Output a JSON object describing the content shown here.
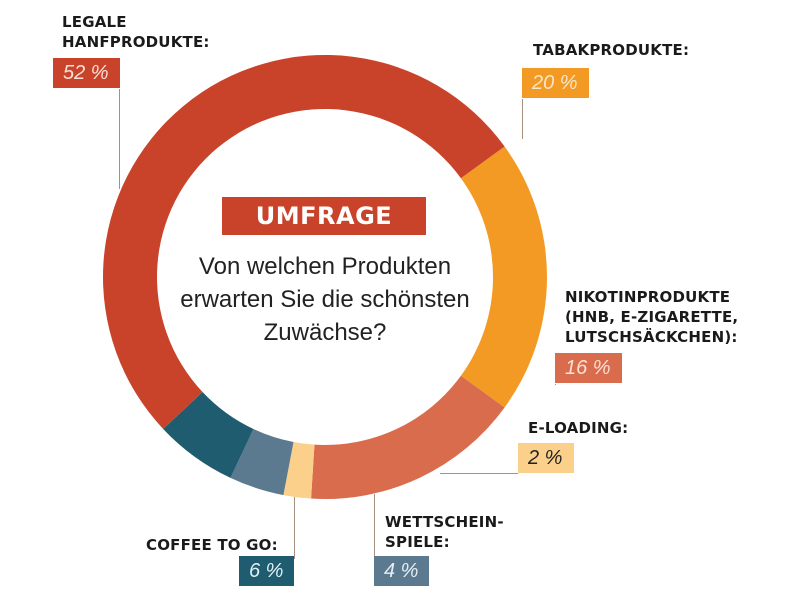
{
  "chart_data": {
    "type": "pie",
    "variant": "donut",
    "title": "UMFRAGE",
    "subtitle": "Von welchen Produkten erwarten Sie die schönsten Zuwächse?",
    "unit": "%",
    "start_angle_deg": 54,
    "direction": "clockwise",
    "slices": [
      {
        "label": "TABAKPRODUKTE:",
        "value": 20,
        "display": "20 %",
        "color": "#f39a24",
        "text_color": "#fbe6c8"
      },
      {
        "label": "NIKOTINPRODUKTE\n(HNB, E-ZIGARETTE,\nLUTSCHSÄCKCHEN):",
        "value": 16,
        "display": "16 %",
        "color": "#d96c4c",
        "text_color": "#fbe0d6"
      },
      {
        "label": "E-LOADING:",
        "value": 2,
        "display": "2 %",
        "color": "#fbd08a",
        "text_color": "#222222"
      },
      {
        "label": "WETTSCHEIN-\nSPIELE:",
        "value": 4,
        "display": "4 %",
        "color": "#5b7a90",
        "text_color": "#e6eef4"
      },
      {
        "label": "COFFEE TO GO:",
        "value": 6,
        "display": "6 %",
        "color": "#1f5c70",
        "text_color": "#e0f0f4"
      },
      {
        "label": "LEGALE\nHANFPRODUKTE:",
        "value": 52,
        "display": "52 %",
        "color": "#c9432a",
        "text_color": "#fbe0d8"
      }
    ]
  }
}
